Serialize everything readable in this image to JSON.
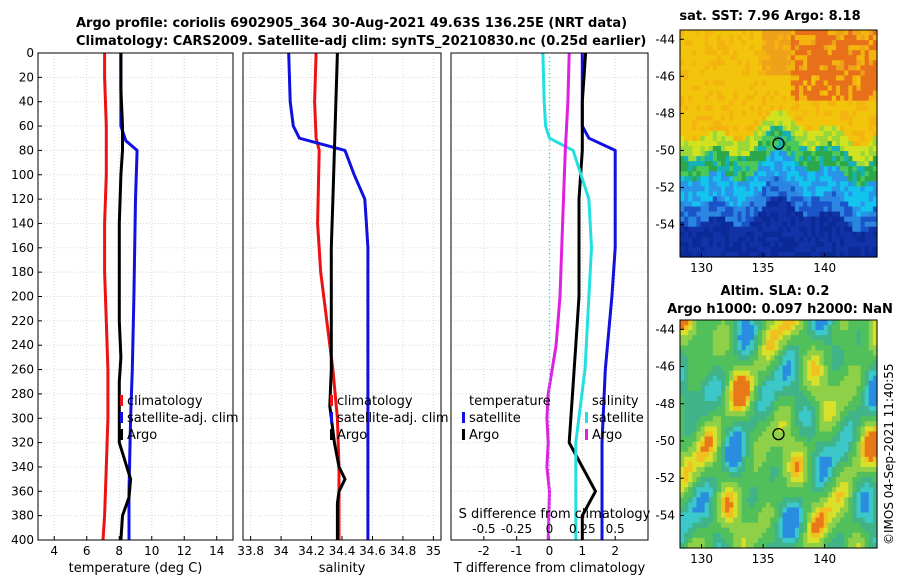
{
  "header": {
    "line1": "Argo profile: coriolis 6902905_364 30-Aug-2021 49.63S 136.25E (NRT data)",
    "line2": "Climatology: CARS2009. Satellite-adj clim: synTS_20210830.nc (0.25d earlier)"
  },
  "watermark": "©IMOS 04-Sep-2021 11:40:55",
  "colors": {
    "climatology": "#ee1111",
    "satellite": "#1010e0",
    "argo": "#000000",
    "sal_diff": "#22e0e0",
    "temp_diff": "#e020e0"
  },
  "chart_data": [
    {
      "id": "temperature",
      "type": "line",
      "xlabel": "temperature (deg C)",
      "ylabel": "",
      "xlim": [
        3,
        15
      ],
      "ylim": [
        400,
        0
      ],
      "xticks": [
        "4",
        "6",
        "8",
        "10",
        "12",
        "14"
      ],
      "xtick_values": [
        4,
        6,
        8,
        10,
        12,
        14
      ],
      "yticks": [
        "0",
        "20",
        "40",
        "60",
        "80",
        "100",
        "120",
        "140",
        "160",
        "180",
        "200",
        "220",
        "240",
        "260",
        "280",
        "300",
        "320",
        "340",
        "360",
        "380",
        "400"
      ],
      "ytick_values": [
        0,
        20,
        40,
        60,
        80,
        100,
        120,
        140,
        160,
        180,
        200,
        220,
        240,
        260,
        280,
        300,
        320,
        340,
        360,
        380,
        400
      ],
      "grid": true,
      "legend": [
        "climatology",
        "satellite-adj. clim",
        "Argo"
      ],
      "series": [
        {
          "name": "climatology",
          "color": "#ee1111",
          "depth": [
            0,
            20,
            60,
            100,
            140,
            180,
            220,
            260,
            300,
            340,
            380,
            400
          ],
          "values": [
            7.1,
            7.1,
            7.2,
            7.2,
            7.1,
            7.1,
            7.2,
            7.3,
            7.3,
            7.2,
            7.1,
            7.0
          ]
        },
        {
          "name": "satellite-adj. clim",
          "color": "#1010e0",
          "depth": [
            0,
            60,
            72,
            80,
            120,
            200,
            260,
            300,
            360,
            400
          ],
          "values": [
            8.1,
            8.1,
            8.4,
            9.1,
            9.0,
            8.9,
            8.8,
            8.7,
            8.6,
            8.6
          ]
        },
        {
          "name": "Argo",
          "color": "#000000",
          "depth": [
            0,
            30,
            60,
            80,
            100,
            140,
            180,
            220,
            250,
            270,
            290,
            320,
            350,
            365,
            380,
            400
          ],
          "values": [
            8.1,
            8.1,
            8.2,
            8.2,
            8.1,
            8.0,
            8.0,
            8.0,
            8.1,
            8.0,
            8.0,
            8.0,
            8.7,
            8.6,
            8.2,
            8.1
          ]
        }
      ]
    },
    {
      "id": "salinity",
      "type": "line",
      "xlabel": "salinity",
      "ylabel": "",
      "xlim": [
        33.75,
        35.05
      ],
      "ylim": [
        400,
        0
      ],
      "xticks": [
        "33.8",
        "34",
        "34.2",
        "34.4",
        "34.6",
        "34.8",
        "35"
      ],
      "xtick_values": [
        33.8,
        34.0,
        34.2,
        34.4,
        34.6,
        34.8,
        35.0
      ],
      "grid": true,
      "legend": [
        "climatology",
        "satellite-adj. clim",
        "Argo"
      ],
      "series": [
        {
          "name": "climatology",
          "color": "#ee1111",
          "depth": [
            0,
            40,
            70,
            80,
            140,
            180,
            220,
            260,
            300,
            340,
            400
          ],
          "values": [
            34.23,
            34.22,
            34.23,
            34.25,
            34.24,
            34.26,
            34.3,
            34.34,
            34.37,
            34.38,
            34.38
          ]
        },
        {
          "name": "satellite-adj. clim",
          "color": "#1010e0",
          "depth": [
            0,
            40,
            60,
            70,
            80,
            100,
            120,
            140,
            160,
            200,
            280,
            400
          ],
          "values": [
            34.05,
            34.06,
            34.08,
            34.12,
            34.42,
            34.48,
            34.55,
            34.56,
            34.57,
            34.57,
            34.57,
            34.57
          ]
        },
        {
          "name": "Argo",
          "color": "#000000",
          "depth": [
            0,
            40,
            80,
            120,
            160,
            200,
            260,
            290,
            320,
            340,
            350,
            360,
            370,
            400
          ],
          "values": [
            34.37,
            34.36,
            34.35,
            34.34,
            34.33,
            34.33,
            34.33,
            34.32,
            34.35,
            34.38,
            34.42,
            34.38,
            34.37,
            34.37
          ]
        }
      ]
    },
    {
      "id": "differences",
      "type": "line",
      "xlabel": "T difference from climatology",
      "xlabel_top": "S difference from climatology",
      "ylim": [
        400,
        0
      ],
      "xlim": [
        -3,
        3
      ],
      "xticks": [
        "-2",
        "-1",
        "0",
        "1",
        "2"
      ],
      "xtick_values": [
        -2,
        -1,
        0,
        1,
        2
      ],
      "s_xticks": [
        "-0.5",
        "-0.25",
        "0",
        "0.25",
        "0.5"
      ],
      "s_xtick_values": [
        -0.5,
        -0.25,
        0,
        0.25,
        0.5
      ],
      "grid": true,
      "legend_temperature": [
        "temperature",
        "satellite",
        "Argo"
      ],
      "legend_salinity": [
        "salinity",
        "satellite",
        "Argo"
      ],
      "series": [
        {
          "name": "temperature satellite",
          "color": "#1010e0",
          "unit": "T",
          "depth": [
            0,
            20,
            60,
            70,
            80,
            120,
            160,
            200,
            260,
            320,
            360,
            400
          ],
          "values": [
            1.0,
            1.0,
            1.0,
            1.2,
            2.0,
            2.0,
            2.0,
            1.9,
            1.7,
            1.6,
            1.6,
            1.6
          ]
        },
        {
          "name": "temperature Argo",
          "color": "#000000",
          "unit": "T",
          "depth": [
            0,
            40,
            80,
            120,
            160,
            200,
            240,
            280,
            320,
            360,
            380,
            400
          ],
          "values": [
            1.1,
            1.0,
            1.0,
            0.9,
            0.9,
            0.9,
            0.8,
            0.7,
            0.6,
            1.4,
            1.0,
            1.0
          ]
        },
        {
          "name": "salinity satellite",
          "color": "#22e0e0",
          "unit": "S",
          "depth": [
            0,
            40,
            60,
            70,
            80,
            120,
            160,
            200,
            260,
            320,
            360,
            400
          ],
          "values": [
            -0.05,
            -0.04,
            -0.03,
            0.0,
            0.18,
            0.3,
            0.32,
            0.3,
            0.27,
            0.2,
            0.2,
            0.2
          ]
        },
        {
          "name": "salinity Argo",
          "color": "#e020e0",
          "unit": "S",
          "depth": [
            0,
            40,
            80,
            140,
            200,
            240,
            280,
            300,
            320,
            340,
            360,
            400
          ],
          "values": [
            0.15,
            0.14,
            0.12,
            0.1,
            0.08,
            0.05,
            -0.01,
            -0.02,
            -0.01,
            -0.02,
            0.0,
            -0.01
          ]
        }
      ]
    },
    {
      "id": "sst-map",
      "type": "heatmap",
      "title": "sat. SST: 7.96 Argo: 8.18",
      "xticks": [
        "130",
        "135",
        "140"
      ],
      "xtick_values": [
        130,
        135,
        140
      ],
      "yticks": [
        "-44",
        "-46",
        "-48",
        "-50",
        "-52",
        "-54"
      ],
      "ytick_values": [
        -44,
        -46,
        -48,
        -50,
        -52,
        -54
      ],
      "xlim": [
        128.25,
        144.25
      ],
      "ylim": [
        -55.75,
        -43.5
      ],
      "marker_lon": 136.25,
      "marker_lat": -49.63
    },
    {
      "id": "sla-map",
      "type": "heatmap",
      "title_line1": "Altim. SLA: 0.2",
      "title_line2": "Argo h1000: 0.097 h2000: NaN",
      "xticks": [
        "130",
        "135",
        "140"
      ],
      "xtick_values": [
        130,
        135,
        140
      ],
      "yticks": [
        "-44",
        "-46",
        "-48",
        "-50",
        "-52",
        "-54"
      ],
      "ytick_values": [
        -44,
        -46,
        -48,
        -50,
        -52,
        -54
      ],
      "xlim": [
        128.25,
        144.25
      ],
      "ylim": [
        -55.75,
        -43.5
      ],
      "marker_lon": 136.25,
      "marker_lat": -49.63
    }
  ]
}
